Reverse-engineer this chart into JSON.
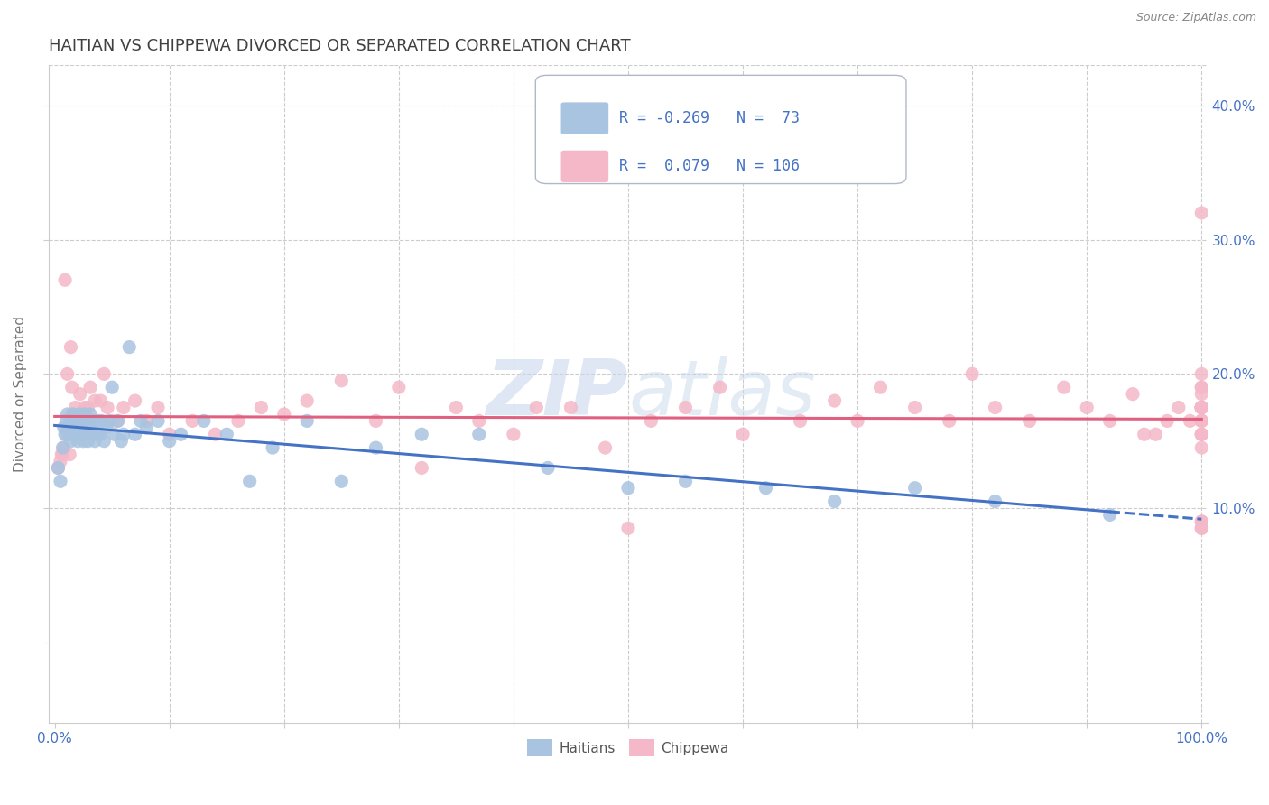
{
  "title": "HAITIAN VS CHIPPEWA DIVORCED OR SEPARATED CORRELATION CHART",
  "source": "Source: ZipAtlas.com",
  "ylabel": "Divorced or Separated",
  "xlim": [
    -0.005,
    1.005
  ],
  "ylim": [
    -0.06,
    0.43
  ],
  "xticks": [
    0.0,
    0.1,
    0.2,
    0.3,
    0.4,
    0.5,
    0.6,
    0.7,
    0.8,
    0.9,
    1.0
  ],
  "xtick_labels": [
    "0.0%",
    "",
    "",
    "",
    "",
    "",
    "",
    "",
    "",
    "",
    "100.0%"
  ],
  "yticks": [
    0.0,
    0.1,
    0.2,
    0.3,
    0.4
  ],
  "ytick_right_labels": [
    "",
    "10.0%",
    "20.0%",
    "30.0%",
    "40.0%"
  ],
  "haitian_color": "#a8c4e0",
  "chippewa_color": "#f4b8c8",
  "haitian_line_color": "#4472c4",
  "chippewa_line_color": "#e06080",
  "legend_r_haitian": "-0.269",
  "legend_n_haitian": "73",
  "legend_r_chippewa": "0.079",
  "legend_n_chippewa": "106",
  "watermark_zip": "ZIP",
  "watermark_atlas": "atlas",
  "background_color": "#ffffff",
  "grid_color": "#cccccc",
  "title_color": "#404040",
  "axis_color": "#cccccc",
  "tick_label_color": "#4472c4",
  "haitian_x": [
    0.003,
    0.005,
    0.007,
    0.008,
    0.009,
    0.01,
    0.011,
    0.012,
    0.013,
    0.014,
    0.015,
    0.015,
    0.016,
    0.017,
    0.018,
    0.018,
    0.019,
    0.02,
    0.02,
    0.021,
    0.022,
    0.023,
    0.024,
    0.025,
    0.025,
    0.026,
    0.027,
    0.028,
    0.029,
    0.03,
    0.03,
    0.031,
    0.032,
    0.033,
    0.034,
    0.035,
    0.036,
    0.037,
    0.038,
    0.04,
    0.041,
    0.043,
    0.045,
    0.047,
    0.05,
    0.052,
    0.055,
    0.058,
    0.06,
    0.065,
    0.07,
    0.075,
    0.08,
    0.09,
    0.1,
    0.11,
    0.13,
    0.15,
    0.17,
    0.19,
    0.22,
    0.25,
    0.28,
    0.32,
    0.37,
    0.43,
    0.5,
    0.55,
    0.62,
    0.68,
    0.75,
    0.82,
    0.92
  ],
  "haitian_y": [
    0.13,
    0.12,
    0.145,
    0.16,
    0.155,
    0.165,
    0.17,
    0.155,
    0.16,
    0.15,
    0.155,
    0.165,
    0.17,
    0.155,
    0.165,
    0.16,
    0.155,
    0.15,
    0.165,
    0.17,
    0.155,
    0.16,
    0.155,
    0.15,
    0.165,
    0.17,
    0.155,
    0.165,
    0.15,
    0.155,
    0.165,
    0.17,
    0.155,
    0.16,
    0.165,
    0.15,
    0.155,
    0.16,
    0.165,
    0.155,
    0.165,
    0.15,
    0.16,
    0.165,
    0.19,
    0.155,
    0.165,
    0.15,
    0.155,
    0.22,
    0.155,
    0.165,
    0.16,
    0.165,
    0.15,
    0.155,
    0.165,
    0.155,
    0.12,
    0.145,
    0.165,
    0.12,
    0.145,
    0.155,
    0.155,
    0.13,
    0.115,
    0.12,
    0.115,
    0.105,
    0.115,
    0.105,
    0.095
  ],
  "chippewa_x": [
    0.003,
    0.005,
    0.006,
    0.007,
    0.008,
    0.009,
    0.01,
    0.011,
    0.012,
    0.013,
    0.014,
    0.015,
    0.015,
    0.016,
    0.017,
    0.018,
    0.019,
    0.02,
    0.021,
    0.022,
    0.023,
    0.024,
    0.025,
    0.026,
    0.027,
    0.028,
    0.029,
    0.03,
    0.031,
    0.032,
    0.035,
    0.038,
    0.04,
    0.043,
    0.046,
    0.05,
    0.055,
    0.06,
    0.07,
    0.08,
    0.09,
    0.1,
    0.12,
    0.14,
    0.16,
    0.18,
    0.2,
    0.22,
    0.25,
    0.28,
    0.3,
    0.32,
    0.35,
    0.37,
    0.4,
    0.42,
    0.45,
    0.48,
    0.5,
    0.52,
    0.55,
    0.58,
    0.6,
    0.65,
    0.68,
    0.7,
    0.72,
    0.75,
    0.78,
    0.8,
    0.82,
    0.85,
    0.88,
    0.9,
    0.92,
    0.94,
    0.95,
    0.96,
    0.97,
    0.98,
    0.99,
    1.0,
    1.0,
    1.0,
    1.0,
    1.0,
    1.0,
    1.0,
    1.0,
    1.0,
    1.0,
    1.0,
    1.0,
    1.0,
    1.0,
    1.0,
    1.0,
    1.0,
    1.0,
    1.0,
    1.0,
    1.0,
    1.0,
    1.0,
    1.0,
    1.0
  ],
  "chippewa_y": [
    0.13,
    0.135,
    0.14,
    0.14,
    0.145,
    0.27,
    0.155,
    0.2,
    0.155,
    0.14,
    0.22,
    0.17,
    0.19,
    0.155,
    0.165,
    0.175,
    0.165,
    0.155,
    0.165,
    0.185,
    0.155,
    0.155,
    0.165,
    0.175,
    0.165,
    0.155,
    0.175,
    0.155,
    0.19,
    0.165,
    0.18,
    0.155,
    0.18,
    0.2,
    0.175,
    0.165,
    0.165,
    0.175,
    0.18,
    0.165,
    0.175,
    0.155,
    0.165,
    0.155,
    0.165,
    0.175,
    0.17,
    0.18,
    0.195,
    0.165,
    0.19,
    0.13,
    0.175,
    0.165,
    0.155,
    0.175,
    0.175,
    0.145,
    0.085,
    0.165,
    0.175,
    0.19,
    0.155,
    0.165,
    0.18,
    0.165,
    0.19,
    0.175,
    0.165,
    0.2,
    0.175,
    0.165,
    0.19,
    0.175,
    0.165,
    0.185,
    0.155,
    0.155,
    0.165,
    0.175,
    0.165,
    0.175,
    0.165,
    0.19,
    0.175,
    0.155,
    0.175,
    0.165,
    0.185,
    0.145,
    0.19,
    0.175,
    0.165,
    0.155,
    0.2,
    0.32,
    0.175,
    0.175,
    0.155,
    0.165,
    0.175,
    0.085,
    0.09,
    0.175,
    0.09,
    0.085
  ]
}
